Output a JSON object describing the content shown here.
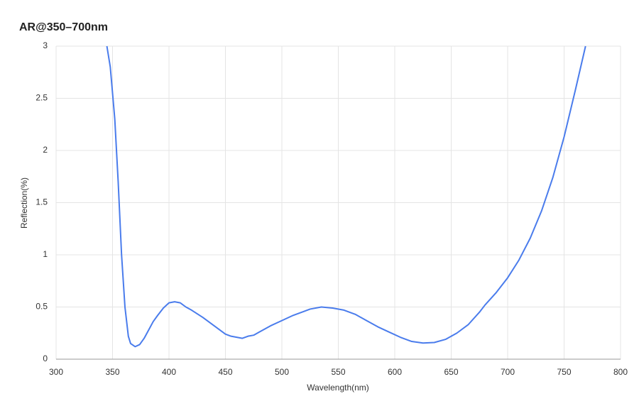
{
  "chart_data": {
    "type": "line",
    "title": "AR@350–700nm",
    "x_label": "Wavelength(nm)",
    "y_label": "Reflection(%)",
    "x": [
      345,
      348,
      352,
      355,
      358,
      361,
      364,
      366,
      370,
      374,
      378,
      382,
      386,
      390,
      395,
      400,
      405,
      410,
      415,
      420,
      430,
      440,
      450,
      455,
      465,
      470,
      475,
      480,
      490,
      500,
      510,
      520,
      525,
      535,
      545,
      555,
      565,
      575,
      585,
      595,
      605,
      615,
      625,
      635,
      645,
      655,
      665,
      675,
      680,
      690,
      700,
      710,
      720,
      730,
      740,
      750,
      760,
      769
    ],
    "values": [
      3.0,
      2.8,
      2.3,
      1.7,
      1.0,
      0.5,
      0.22,
      0.15,
      0.12,
      0.14,
      0.2,
      0.28,
      0.36,
      0.42,
      0.49,
      0.54,
      0.55,
      0.54,
      0.5,
      0.47,
      0.4,
      0.32,
      0.24,
      0.22,
      0.2,
      0.22,
      0.23,
      0.26,
      0.32,
      0.37,
      0.42,
      0.46,
      0.48,
      0.5,
      0.49,
      0.47,
      0.43,
      0.37,
      0.31,
      0.26,
      0.21,
      0.17,
      0.155,
      0.16,
      0.19,
      0.25,
      0.33,
      0.45,
      0.52,
      0.64,
      0.78,
      0.95,
      1.16,
      1.42,
      1.74,
      2.13,
      2.58,
      3.0
    ],
    "color": "#4a7cec",
    "xlim": [
      300,
      800
    ],
    "xticks": [
      300,
      350,
      400,
      450,
      500,
      550,
      600,
      650,
      700,
      750,
      800
    ],
    "ylim": [
      0,
      3
    ],
    "yticks": [
      0,
      0.5,
      1,
      1.5,
      2,
      2.5,
      3
    ],
    "grid": true
  }
}
